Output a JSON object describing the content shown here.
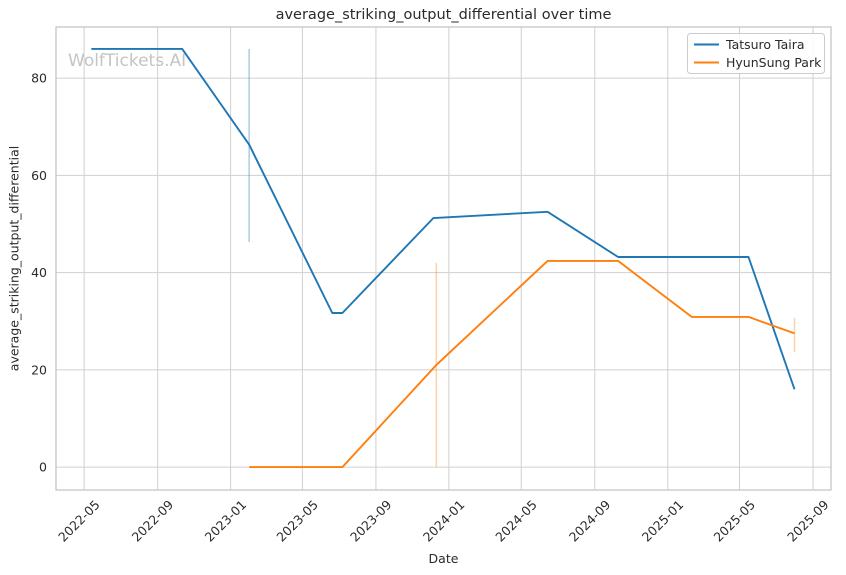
{
  "chart_data": {
    "type": "line",
    "title": "average_striking_output_differential over time",
    "xlabel": "Date",
    "ylabel": "average_striking_output_differential",
    "watermark": "WolfTickets.AI",
    "x_tick_labels": [
      "2022-05",
      "2022-09",
      "2023-01",
      "2023-05",
      "2023-09",
      "2024-01",
      "2024-05",
      "2024-09",
      "2025-01",
      "2025-05",
      "2025-09"
    ],
    "y_tick_labels": [
      "0",
      "20",
      "40",
      "60",
      "80"
    ],
    "y_ticks": [
      0,
      20,
      40,
      60,
      80
    ],
    "xlim": [
      "2022-03-15",
      "2025-10-01"
    ],
    "ylim": [
      -4.7,
      90.5
    ],
    "grid": true,
    "legend_position": "upper right",
    "series": [
      {
        "name": "Tatsuro Taira",
        "color": "#1f77b4",
        "x": [
          "2022-05-13",
          "2022-10-12",
          "2023-02-01",
          "2023-06-20",
          "2023-07-07",
          "2023-12-06",
          "2024-06-14",
          "2024-10-10",
          "2025-05-16",
          "2025-08-01"
        ],
        "y": [
          86,
          86,
          66.3,
          31.7,
          31.7,
          51.2,
          52.5,
          43.2,
          43.2,
          16
        ],
        "error_bars": [
          {
            "x": "2023-02-01",
            "low": 46.3,
            "high": 86.0
          }
        ]
      },
      {
        "name": "HyunSung Park",
        "color": "#ff7f0e",
        "x": [
          "2023-02-01",
          "2023-07-07",
          "2023-12-11",
          "2024-06-14",
          "2024-10-10",
          "2025-02-10",
          "2025-05-16",
          "2025-08-01"
        ],
        "y": [
          0,
          0,
          21,
          42.4,
          42.4,
          30.9,
          30.9,
          27.5
        ],
        "error_bars": [
          {
            "x": "2023-12-11",
            "low": 0,
            "high": 42
          },
          {
            "x": "2025-08-01",
            "low": 23.7,
            "high": 30.7
          }
        ]
      }
    ]
  }
}
